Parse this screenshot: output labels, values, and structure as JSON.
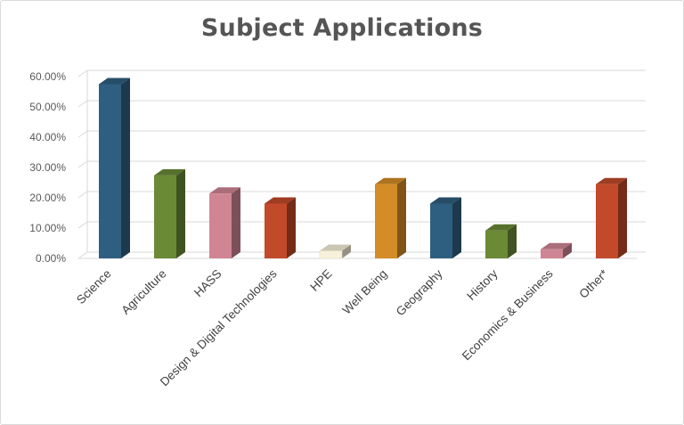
{
  "chart_data": {
    "type": "bar",
    "title": "Subject Applications",
    "categories": [
      "Science",
      "Agriculture",
      "HASS",
      "Design & Digital Technologies",
      "HPE",
      "Well Being",
      "Geography",
      "History",
      "Economics & Business",
      "Other*"
    ],
    "values": [
      57.5,
      27.4,
      21.4,
      18.1,
      2.5,
      24.5,
      18.1,
      9.2,
      3.0,
      24.5
    ],
    "ylim": [
      0,
      60
    ],
    "yticks": [
      "0.00%",
      "10.00%",
      "20.00%",
      "30.00%",
      "40.00%",
      "50.00%",
      "60.00%"
    ],
    "ytick_values": [
      0,
      10,
      20,
      30,
      40,
      50,
      60
    ],
    "grid": true,
    "style": "3d-columns",
    "colors": [
      "#2f5f80",
      "#6a8a36",
      "#d08595",
      "#c24a2a",
      "#f7f1dc",
      "#d38c26",
      "#2f5f80",
      "#6a8a36",
      "#d08595",
      "#c24a2a"
    ]
  }
}
